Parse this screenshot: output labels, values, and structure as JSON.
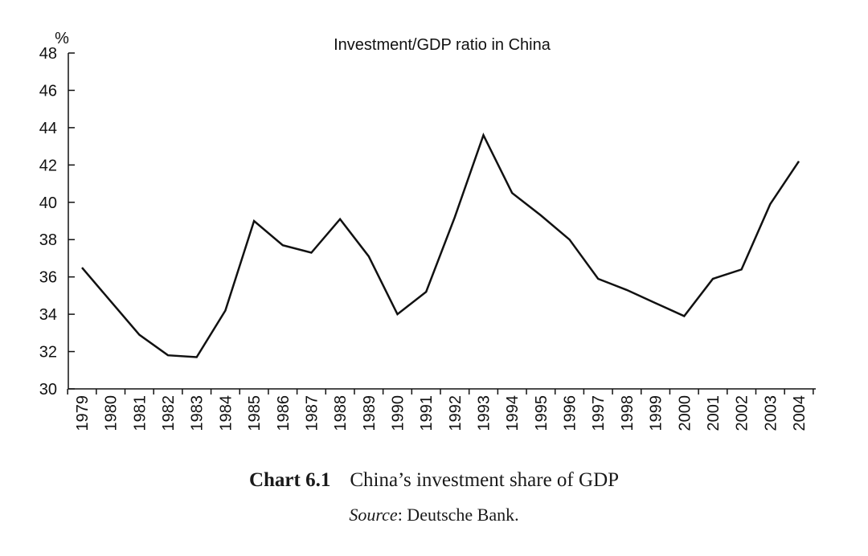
{
  "chart_data": {
    "type": "line",
    "title": "Investment/GDP ratio in China",
    "ylabel": "%",
    "xlabel": "",
    "ylim": [
      30,
      48
    ],
    "yticks": [
      30,
      32,
      34,
      36,
      38,
      40,
      42,
      44,
      46,
      48
    ],
    "categories": [
      "1979",
      "1980",
      "1981",
      "1982",
      "1983",
      "1984",
      "1985",
      "1986",
      "1987",
      "1988",
      "1989",
      "1990",
      "1991",
      "1992",
      "1993",
      "1994",
      "1995",
      "1996",
      "1997",
      "1998",
      "1999",
      "2000",
      "2001",
      "2002",
      "2003",
      "2004"
    ],
    "values": [
      36.5,
      34.7,
      32.9,
      31.8,
      31.7,
      34.2,
      39.0,
      37.7,
      37.3,
      39.1,
      37.1,
      34.0,
      35.2,
      39.2,
      43.6,
      40.5,
      39.3,
      38.0,
      35.9,
      35.3,
      34.6,
      33.9,
      35.9,
      36.4,
      39.9,
      42.2
    ],
    "grid": false,
    "line_color": "#111111"
  },
  "caption": {
    "label": "Chart 6.1",
    "text": "China’s investment share of GDP"
  },
  "source": {
    "label": "Source",
    "text": ": Deutsche Bank."
  }
}
